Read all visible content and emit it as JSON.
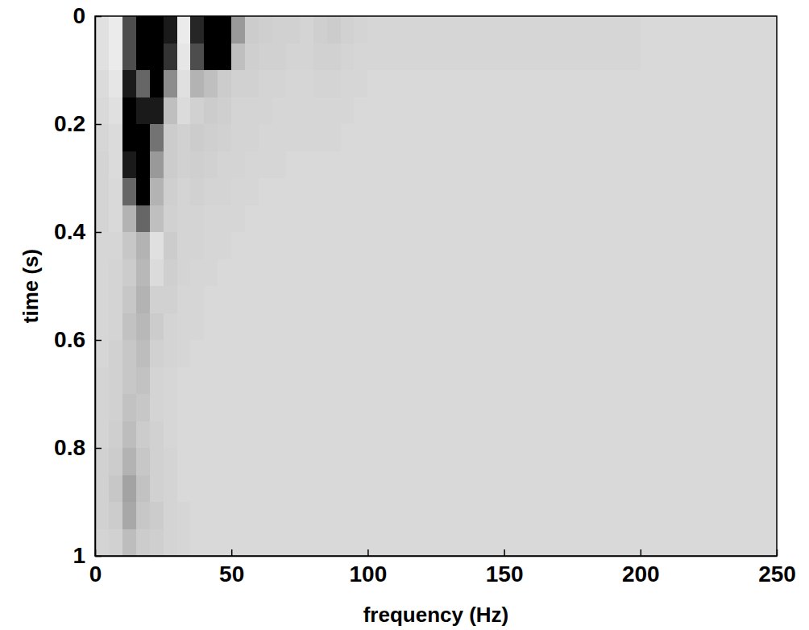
{
  "chart_data": {
    "type": "heatmap",
    "x_label": "frequency (Hz)",
    "y_label": "time (s)",
    "xlim": [
      0,
      250
    ],
    "ylim": [
      0,
      1
    ],
    "xticks": [
      0,
      50,
      100,
      150,
      200,
      250
    ],
    "yticks": [
      0,
      0.2,
      0.4,
      0.6,
      0.8,
      1
    ],
    "zlim": [
      0,
      100
    ],
    "x": [
      2.5,
      7.5,
      12.5,
      17.5,
      22.5,
      27.5,
      32.5,
      37.5,
      42.5,
      47.5,
      52.5,
      57.5,
      62.5,
      67.5,
      72.5,
      77.5,
      82.5,
      87.5,
      92.5,
      97.5,
      102.5,
      107.5,
      112.5,
      117.5,
      122.5,
      127.5,
      132.5,
      137.5,
      142.5,
      147.5,
      152.5,
      157.5,
      162.5,
      167.5,
      172.5,
      177.5,
      182.5,
      187.5,
      192.5,
      197.5,
      202.5,
      207.5,
      212.5,
      217.5,
      222.5,
      227.5,
      232.5,
      237.5,
      242.5,
      247.5
    ],
    "y": [
      0.025,
      0.075,
      0.125,
      0.175,
      0.225,
      0.275,
      0.325,
      0.375,
      0.425,
      0.475,
      0.525,
      0.575,
      0.625,
      0.675,
      0.725,
      0.775,
      0.825,
      0.875,
      0.925,
      0.975
    ],
    "z": [
      [
        12,
        8,
        70,
        100,
        100,
        90,
        8,
        85,
        100,
        100,
        40,
        20,
        19,
        18,
        18,
        17,
        19,
        20,
        18,
        17,
        16,
        16,
        16,
        16,
        16,
        16,
        16,
        16,
        16,
        16,
        16,
        16,
        16,
        16,
        16,
        16,
        16,
        16,
        16,
        16,
        15,
        15,
        15,
        15,
        15,
        15,
        15,
        15,
        15,
        15
      ],
      [
        12,
        8,
        70,
        100,
        100,
        80,
        10,
        70,
        100,
        100,
        25,
        19,
        18,
        18,
        17,
        17,
        18,
        18,
        17,
        16,
        16,
        16,
        16,
        16,
        16,
        16,
        16,
        16,
        16,
        16,
        16,
        16,
        16,
        16,
        16,
        16,
        16,
        16,
        16,
        16,
        15,
        15,
        15,
        15,
        15,
        15,
        15,
        15,
        15,
        15
      ],
      [
        14,
        10,
        90,
        60,
        100,
        45,
        12,
        30,
        25,
        20,
        18,
        18,
        17,
        17,
        16,
        16,
        17,
        17,
        16,
        16,
        15,
        15,
        15,
        15,
        15,
        15,
        15,
        15,
        15,
        15,
        15,
        15,
        15,
        15,
        15,
        15,
        15,
        15,
        15,
        15,
        15,
        15,
        15,
        15,
        15,
        15,
        15,
        15,
        15,
        15
      ],
      [
        15,
        12,
        100,
        90,
        90,
        25,
        14,
        18,
        20,
        19,
        17,
        17,
        17,
        16,
        16,
        16,
        16,
        16,
        16,
        15,
        15,
        15,
        15,
        15,
        15,
        15,
        15,
        15,
        15,
        15,
        15,
        15,
        15,
        15,
        15,
        15,
        15,
        15,
        15,
        15,
        15,
        15,
        15,
        15,
        15,
        15,
        15,
        15,
        15,
        15
      ],
      [
        16,
        14,
        100,
        100,
        55,
        20,
        18,
        20,
        19,
        18,
        17,
        17,
        16,
        16,
        16,
        16,
        16,
        16,
        15,
        15,
        15,
        15,
        15,
        15,
        15,
        15,
        15,
        15,
        15,
        15,
        15,
        15,
        15,
        15,
        15,
        15,
        15,
        15,
        15,
        15,
        15,
        15,
        15,
        15,
        15,
        15,
        15,
        15,
        15,
        15
      ],
      [
        17,
        14,
        90,
        100,
        40,
        20,
        18,
        19,
        18,
        17,
        17,
        16,
        16,
        16,
        15,
        15,
        15,
        15,
        15,
        15,
        15,
        15,
        15,
        15,
        15,
        15,
        15,
        15,
        15,
        15,
        15,
        15,
        15,
        15,
        15,
        15,
        15,
        15,
        15,
        15,
        15,
        15,
        15,
        15,
        15,
        15,
        15,
        15,
        15,
        15
      ],
      [
        17,
        15,
        60,
        100,
        30,
        19,
        17,
        18,
        17,
        17,
        16,
        16,
        15,
        15,
        15,
        15,
        15,
        15,
        15,
        15,
        15,
        15,
        15,
        15,
        15,
        15,
        15,
        15,
        15,
        15,
        15,
        15,
        15,
        15,
        15,
        15,
        15,
        15,
        15,
        15,
        15,
        15,
        15,
        15,
        15,
        15,
        15,
        15,
        15,
        15
      ],
      [
        17,
        15,
        30,
        60,
        25,
        18,
        17,
        17,
        16,
        16,
        16,
        15,
        15,
        15,
        15,
        15,
        15,
        15,
        15,
        15,
        15,
        15,
        15,
        15,
        15,
        15,
        15,
        15,
        15,
        15,
        15,
        15,
        15,
        15,
        15,
        15,
        15,
        15,
        15,
        15,
        15,
        15,
        15,
        15,
        15,
        15,
        15,
        15,
        15,
        15
      ],
      [
        16,
        16,
        22,
        30,
        12,
        20,
        17,
        17,
        16,
        16,
        15,
        15,
        15,
        15,
        15,
        15,
        15,
        15,
        15,
        15,
        15,
        15,
        15,
        15,
        15,
        15,
        15,
        15,
        15,
        15,
        15,
        15,
        15,
        15,
        15,
        15,
        15,
        15,
        15,
        15,
        15,
        15,
        15,
        15,
        15,
        15,
        15,
        15,
        15,
        15
      ],
      [
        16,
        17,
        20,
        28,
        14,
        19,
        17,
        16,
        16,
        15,
        15,
        15,
        15,
        15,
        15,
        15,
        15,
        15,
        15,
        15,
        15,
        15,
        15,
        15,
        15,
        15,
        15,
        15,
        15,
        15,
        15,
        15,
        15,
        15,
        15,
        15,
        15,
        15,
        15,
        15,
        15,
        15,
        15,
        15,
        15,
        15,
        15,
        15,
        15,
        15
      ],
      [
        16,
        17,
        22,
        30,
        18,
        18,
        16,
        16,
        15,
        15,
        15,
        15,
        15,
        15,
        15,
        15,
        15,
        15,
        15,
        15,
        15,
        15,
        15,
        15,
        15,
        15,
        15,
        15,
        15,
        15,
        15,
        15,
        15,
        15,
        15,
        15,
        15,
        15,
        15,
        15,
        15,
        15,
        15,
        15,
        15,
        15,
        15,
        15,
        15,
        15
      ],
      [
        16,
        17,
        24,
        28,
        20,
        17,
        16,
        16,
        15,
        15,
        15,
        15,
        15,
        15,
        15,
        15,
        15,
        15,
        15,
        15,
        15,
        15,
        15,
        15,
        15,
        15,
        15,
        15,
        15,
        15,
        15,
        15,
        15,
        15,
        15,
        15,
        15,
        15,
        15,
        15,
        15,
        15,
        15,
        15,
        15,
        15,
        15,
        15,
        15,
        15
      ],
      [
        16,
        18,
        22,
        26,
        18,
        17,
        16,
        15,
        15,
        15,
        15,
        15,
        15,
        15,
        15,
        15,
        15,
        15,
        15,
        15,
        15,
        15,
        15,
        15,
        15,
        15,
        15,
        15,
        15,
        15,
        15,
        15,
        15,
        15,
        15,
        15,
        15,
        15,
        15,
        15,
        15,
        15,
        15,
        15,
        15,
        15,
        15,
        15,
        15,
        15
      ],
      [
        17,
        18,
        22,
        24,
        17,
        16,
        15,
        15,
        15,
        15,
        15,
        15,
        15,
        15,
        15,
        15,
        15,
        15,
        15,
        15,
        15,
        15,
        15,
        15,
        15,
        15,
        15,
        15,
        15,
        15,
        15,
        15,
        15,
        15,
        15,
        15,
        15,
        15,
        15,
        15,
        15,
        15,
        15,
        15,
        15,
        15,
        15,
        15,
        15,
        15
      ],
      [
        17,
        18,
        24,
        22,
        17,
        16,
        15,
        15,
        15,
        15,
        15,
        15,
        15,
        15,
        15,
        15,
        15,
        15,
        15,
        15,
        15,
        15,
        15,
        15,
        15,
        15,
        15,
        15,
        15,
        15,
        15,
        15,
        15,
        15,
        15,
        15,
        15,
        15,
        15,
        15,
        15,
        15,
        15,
        15,
        15,
        15,
        15,
        15,
        15,
        15
      ],
      [
        17,
        19,
        26,
        20,
        18,
        16,
        15,
        15,
        15,
        15,
        15,
        15,
        15,
        15,
        15,
        15,
        15,
        15,
        15,
        15,
        15,
        15,
        15,
        15,
        15,
        15,
        15,
        15,
        15,
        15,
        15,
        15,
        15,
        15,
        15,
        15,
        15,
        15,
        15,
        15,
        15,
        15,
        15,
        15,
        15,
        15,
        15,
        15,
        15,
        15
      ],
      [
        18,
        20,
        30,
        22,
        18,
        17,
        15,
        15,
        15,
        15,
        15,
        15,
        15,
        15,
        15,
        15,
        15,
        15,
        15,
        15,
        15,
        15,
        15,
        15,
        15,
        15,
        15,
        15,
        15,
        15,
        15,
        15,
        15,
        15,
        15,
        15,
        15,
        15,
        15,
        15,
        15,
        15,
        15,
        15,
        15,
        15,
        15,
        15,
        15,
        15
      ],
      [
        18,
        22,
        36,
        24,
        18,
        17,
        15,
        15,
        15,
        15,
        15,
        15,
        15,
        15,
        15,
        15,
        15,
        15,
        15,
        15,
        15,
        15,
        15,
        15,
        15,
        15,
        15,
        15,
        15,
        15,
        15,
        15,
        15,
        15,
        15,
        15,
        15,
        15,
        15,
        15,
        15,
        15,
        15,
        15,
        15,
        15,
        15,
        15,
        15,
        15
      ],
      [
        18,
        20,
        34,
        22,
        20,
        17,
        16,
        15,
        15,
        15,
        15,
        15,
        15,
        15,
        15,
        15,
        15,
        15,
        15,
        15,
        15,
        15,
        15,
        15,
        15,
        15,
        15,
        15,
        15,
        15,
        15,
        15,
        15,
        15,
        15,
        15,
        15,
        15,
        15,
        15,
        15,
        15,
        15,
        15,
        15,
        15,
        15,
        15,
        15,
        15
      ],
      [
        17,
        18,
        26,
        20,
        19,
        17,
        16,
        15,
        15,
        15,
        15,
        15,
        15,
        15,
        15,
        15,
        15,
        15,
        15,
        15,
        15,
        15,
        15,
        15,
        15,
        15,
        15,
        15,
        15,
        15,
        15,
        15,
        15,
        15,
        15,
        15,
        15,
        15,
        15,
        15,
        15,
        15,
        15,
        15,
        15,
        15,
        15,
        15,
        15,
        15
      ]
    ]
  }
}
